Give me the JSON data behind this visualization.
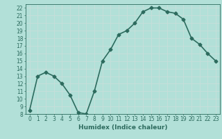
{
  "x": [
    0,
    1,
    2,
    3,
    4,
    5,
    6,
    7,
    8,
    9,
    10,
    11,
    12,
    13,
    14,
    15,
    16,
    17,
    18,
    19,
    20,
    21,
    22,
    23
  ],
  "y": [
    8.5,
    13.0,
    13.5,
    13.0,
    12.0,
    10.5,
    8.2,
    8.0,
    11.0,
    15.0,
    16.5,
    18.5,
    19.0,
    20.0,
    21.5,
    22.0,
    22.0,
    21.5,
    21.3,
    20.5,
    18.0,
    17.2,
    16.0,
    15.0
  ],
  "title": "",
  "xlabel": "Humidex (Indice chaleur)",
  "ylabel": "",
  "ylim": [
    8,
    22.5
  ],
  "xlim": [
    -0.5,
    23.5
  ],
  "yticks": [
    8,
    9,
    10,
    11,
    12,
    13,
    14,
    15,
    16,
    17,
    18,
    19,
    20,
    21,
    22
  ],
  "xticks": [
    0,
    1,
    2,
    3,
    4,
    5,
    6,
    7,
    8,
    9,
    10,
    11,
    12,
    13,
    14,
    15,
    16,
    17,
    18,
    19,
    20,
    21,
    22,
    23
  ],
  "line_color": "#2d6b5e",
  "bg_color": "#b2e0d8",
  "grid_color": "#c8deda",
  "marker": "D",
  "marker_size": 2.5,
  "line_width": 1.2,
  "label_fontsize": 6.5,
  "tick_fontsize": 5.5
}
